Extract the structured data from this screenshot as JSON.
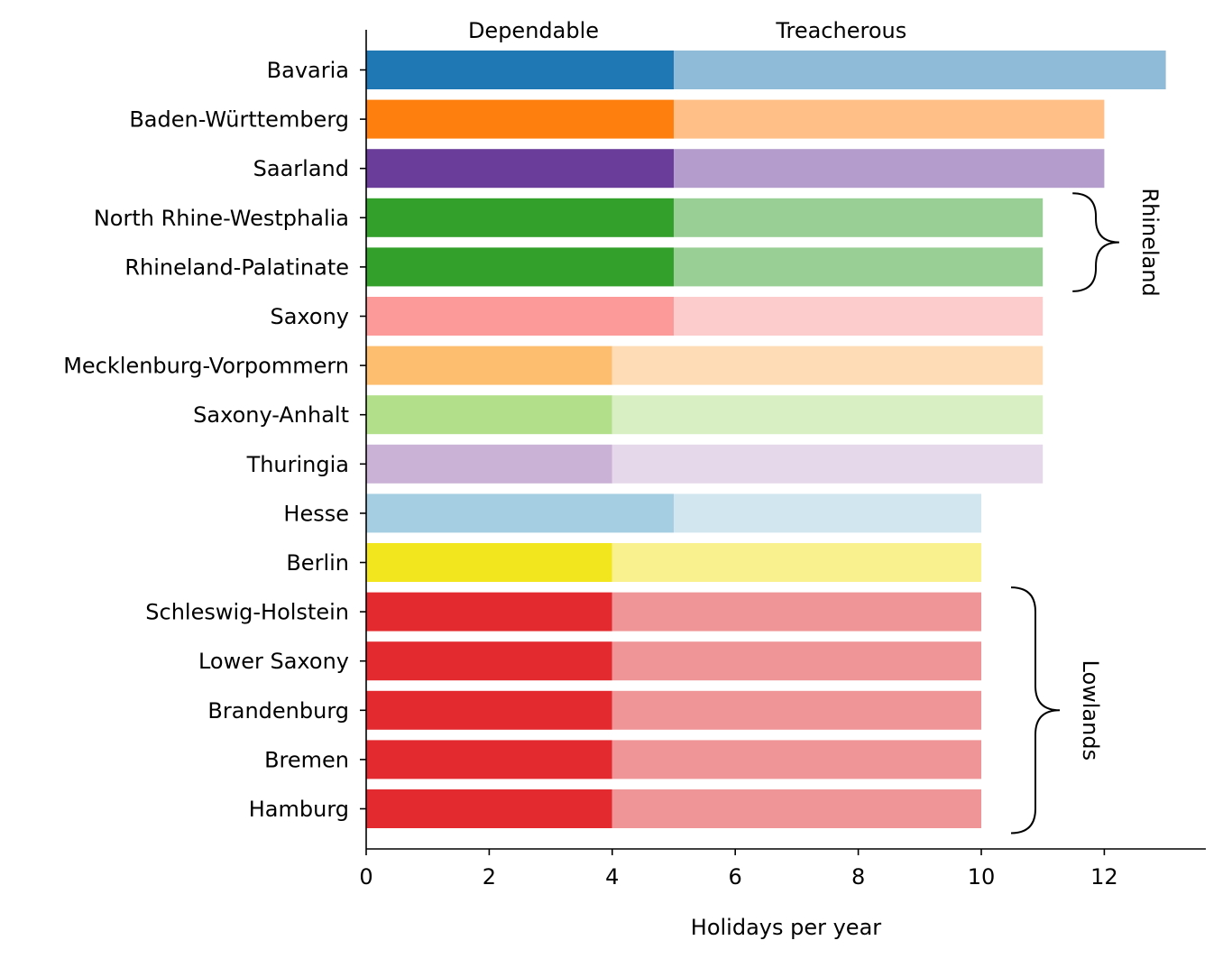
{
  "chart_data": {
    "type": "bar",
    "orientation": "horizontal",
    "stacked": true,
    "xlabel": "Holidays per year",
    "ylabel": "",
    "xlim": [
      0,
      13.65
    ],
    "xticks": [
      "0",
      "2",
      "4",
      "6",
      "8",
      "10",
      "12"
    ],
    "column_labels": [
      "Dependable",
      "Treacherous"
    ],
    "categories": [
      "Bavaria",
      "Baden-Württemberg",
      "Saarland",
      "North Rhine-Westphalia",
      "Rhineland-Palatinate",
      "Saxony",
      "Mecklenburg-Vorpommern",
      "Saxony-Anhalt",
      "Thuringia",
      "Hesse",
      "Berlin",
      "Schleswig-Holstein",
      "Lower Saxony",
      "Brandenburg",
      "Bremen",
      "Hamburg"
    ],
    "dependable": [
      5,
      5,
      5,
      5,
      5,
      5,
      4,
      4,
      4,
      5,
      4,
      4,
      4,
      4,
      4,
      4
    ],
    "total": [
      13,
      12,
      12,
      11,
      11,
      11,
      11,
      11,
      11,
      10,
      10,
      10,
      10,
      10,
      10,
      10
    ],
    "colors_dependable": [
      "#1f77b4",
      "#ff7f0e",
      "#6a3d9a",
      "#33a02c",
      "#33a02c",
      "#fb9a99",
      "#fdbf6f",
      "#b2df8a",
      "#cab2d6",
      "#a6cee3",
      "#f2e61e",
      "#e32b2f",
      "#e32b2f",
      "#e32b2f",
      "#e32b2f",
      "#e32b2f"
    ],
    "colors_treacherous": [
      "#8fbbd9",
      "#ffbf86",
      "#b49ccc",
      "#99cf95",
      "#99cf95",
      "#fccccc",
      "#fedcb6",
      "#d8efc4",
      "#e4d8ea",
      "#d2e6f0",
      "#f8f18e",
      "#f09597",
      "#f09597",
      "#f09597",
      "#f09597",
      "#f09597"
    ],
    "groups": [
      {
        "label": "Rhineland",
        "from": "North Rhine-Westphalia",
        "to": "Rhineland-Palatinate"
      },
      {
        "label": "Lowlands",
        "from": "Schleswig-Holstein",
        "to": "Hamburg"
      }
    ]
  }
}
